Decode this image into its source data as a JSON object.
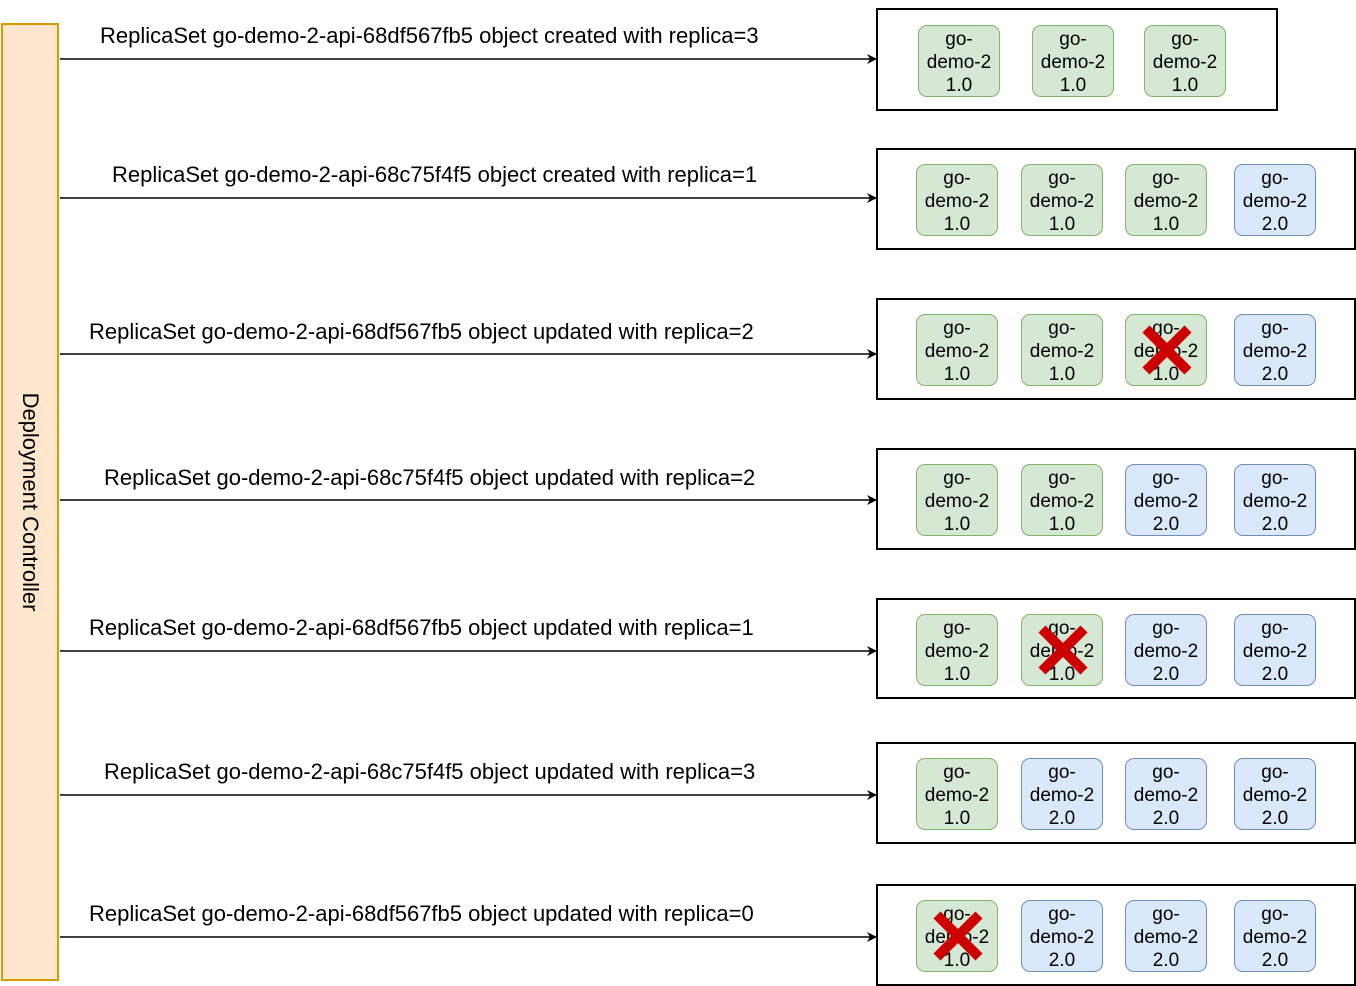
{
  "controller": {
    "label": "Deployment Controller"
  },
  "steps": [
    {
      "label": "ReplicaSet go-demo-2-api-68df567fb5 object created with replica=3",
      "pods": [
        {
          "name": "go-",
          "name2": "demo-2",
          "version": "1.0",
          "deleted": false
        },
        {
          "name": "go-",
          "name2": "demo-2",
          "version": "1.0",
          "deleted": false
        },
        {
          "name": "go-",
          "name2": "demo-2",
          "version": "1.0",
          "deleted": false
        }
      ]
    },
    {
      "label": "ReplicaSet go-demo-2-api-68c75f4f5 object created with replica=1",
      "pods": [
        {
          "name": "go-",
          "name2": "demo-2",
          "version": "1.0",
          "deleted": false
        },
        {
          "name": "go-",
          "name2": "demo-2",
          "version": "1.0",
          "deleted": false
        },
        {
          "name": "go-",
          "name2": "demo-2",
          "version": "1.0",
          "deleted": false
        },
        {
          "name": "go-",
          "name2": "demo-2",
          "version": "2.0",
          "deleted": false
        }
      ]
    },
    {
      "label": "ReplicaSet go-demo-2-api-68df567fb5 object updated with replica=2",
      "pods": [
        {
          "name": "go-",
          "name2": "demo-2",
          "version": "1.0",
          "deleted": false
        },
        {
          "name": "go-",
          "name2": "demo-2",
          "version": "1.0",
          "deleted": false
        },
        {
          "name": "go-",
          "name2": "demo-2",
          "version": "1.0",
          "deleted": true
        },
        {
          "name": "go-",
          "name2": "demo-2",
          "version": "2.0",
          "deleted": false
        }
      ]
    },
    {
      "label": "ReplicaSet go-demo-2-api-68c75f4f5 object updated with replica=2",
      "pods": [
        {
          "name": "go-",
          "name2": "demo-2",
          "version": "1.0",
          "deleted": false
        },
        {
          "name": "go-",
          "name2": "demo-2",
          "version": "1.0",
          "deleted": false
        },
        {
          "name": "go-",
          "name2": "demo-2",
          "version": "2.0",
          "deleted": false
        },
        {
          "name": "go-",
          "name2": "demo-2",
          "version": "2.0",
          "deleted": false
        }
      ]
    },
    {
      "label": "ReplicaSet go-demo-2-api-68df567fb5 object updated with replica=1",
      "pods": [
        {
          "name": "go-",
          "name2": "demo-2",
          "version": "1.0",
          "deleted": false
        },
        {
          "name": "go-",
          "name2": "demo-2",
          "version": "1.0",
          "deleted": true
        },
        {
          "name": "go-",
          "name2": "demo-2",
          "version": "2.0",
          "deleted": false
        },
        {
          "name": "go-",
          "name2": "demo-2",
          "version": "2.0",
          "deleted": false
        }
      ]
    },
    {
      "label": "ReplicaSet go-demo-2-api-68c75f4f5 object updated with replica=3",
      "pods": [
        {
          "name": "go-",
          "name2": "demo-2",
          "version": "1.0",
          "deleted": false
        },
        {
          "name": "go-",
          "name2": "demo-2",
          "version": "2.0",
          "deleted": false
        },
        {
          "name": "go-",
          "name2": "demo-2",
          "version": "2.0",
          "deleted": false
        },
        {
          "name": "go-",
          "name2": "demo-2",
          "version": "2.0",
          "deleted": false
        }
      ]
    },
    {
      "label": "ReplicaSet go-demo-2-api-68df567fb5 object updated with replica=0",
      "pods": [
        {
          "name": "go-",
          "name2": "demo-2",
          "version": "1.0",
          "deleted": true
        },
        {
          "name": "go-",
          "name2": "demo-2",
          "version": "2.0",
          "deleted": false
        },
        {
          "name": "go-",
          "name2": "demo-2",
          "version": "2.0",
          "deleted": false
        },
        {
          "name": "go-",
          "name2": "demo-2",
          "version": "2.0",
          "deleted": false
        }
      ]
    }
  ],
  "colors": {
    "controller_fill": "#ffe6cc",
    "controller_stroke": "#d79b00",
    "pod_v1_fill": "#d5e8d4",
    "pod_v1_stroke": "#82b366",
    "pod_v2_fill": "#dae8fc",
    "pod_v2_stroke": "#6c8ebf",
    "cross": "#cc0000"
  }
}
